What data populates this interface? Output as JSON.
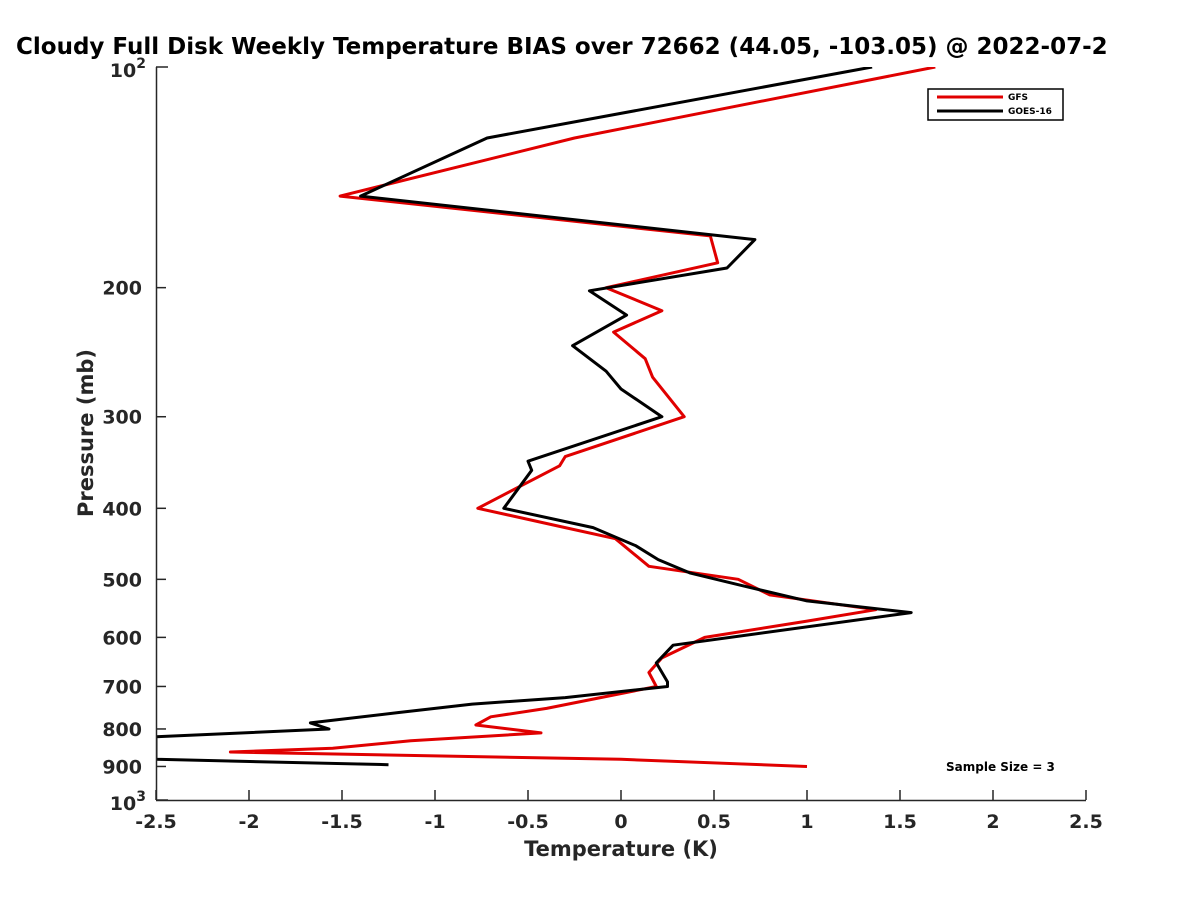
{
  "chart_data": {
    "type": "line",
    "title": "Cloudy Full Disk Weekly Temperature BIAS over 72662 (44.05, -103.05) @ 2022-07-2",
    "xlabel": "Temperature (K)",
    "ylabel": "Pressure (mb)",
    "xlim": [
      -2.5,
      2.5
    ],
    "ylim": [
      100,
      1000
    ],
    "yscale": "log",
    "y_reversed": true,
    "x_ticks": [
      -2.5,
      -2,
      -1.5,
      -1,
      -0.5,
      0,
      0.5,
      1,
      1.5,
      2,
      2.5
    ],
    "x_tick_labels": [
      "-2.5",
      "-2",
      "-1.5",
      "-1",
      "-0.5",
      "0",
      "0.5",
      "1",
      "1.5",
      "2",
      "2.5"
    ],
    "y_ticks": [
      200,
      300,
      400,
      500,
      600,
      700,
      800,
      900
    ],
    "y_tick_labels": [
      "200",
      "300",
      "400",
      "500",
      "600",
      "700",
      "800",
      "900"
    ],
    "y_major_ticks": [
      100,
      1000
    ],
    "y_major_base": "10",
    "y_major_exponents": [
      "2",
      "3"
    ],
    "legend": {
      "position": "top-right"
    },
    "grid": false,
    "annotation": "Sample Size = 3",
    "series": [
      {
        "name": "GFS",
        "color": "#e00000",
        "points": [
          [
            1.69,
            100
          ],
          [
            -0.25,
            125
          ],
          [
            -1.51,
            150
          ],
          [
            0.48,
            170
          ],
          [
            0.52,
            185
          ],
          [
            -0.08,
            200
          ],
          [
            0.22,
            215
          ],
          [
            -0.04,
            230
          ],
          [
            0.13,
            250
          ],
          [
            0.17,
            265
          ],
          [
            0.34,
            300
          ],
          [
            -0.3,
            340
          ],
          [
            -0.33,
            350
          ],
          [
            -0.77,
            400
          ],
          [
            -0.3,
            425
          ],
          [
            -0.03,
            440
          ],
          [
            0.15,
            480
          ],
          [
            0.63,
            500
          ],
          [
            0.8,
            525
          ],
          [
            1.37,
            550
          ],
          [
            1.0,
            570
          ],
          [
            0.45,
            600
          ],
          [
            0.22,
            640
          ],
          [
            0.15,
            670
          ],
          [
            0.19,
            700
          ],
          [
            -0.4,
            750
          ],
          [
            -0.7,
            770
          ],
          [
            -0.78,
            790
          ],
          [
            -0.43,
            810
          ],
          [
            -1.13,
            830
          ],
          [
            -1.55,
            850
          ],
          [
            -2.1,
            860
          ],
          [
            0.0,
            880
          ],
          [
            1.0,
            900
          ]
        ]
      },
      {
        "name": "GOES-16",
        "color": "#000000",
        "points": [
          [
            1.35,
            100
          ],
          [
            -0.72,
            125
          ],
          [
            -1.4,
            150
          ],
          [
            0.72,
            172
          ],
          [
            0.57,
            188
          ],
          [
            -0.17,
            202
          ],
          [
            0.03,
            218
          ],
          [
            -0.26,
            240
          ],
          [
            -0.08,
            260
          ],
          [
            0.0,
            275
          ],
          [
            0.22,
            300
          ],
          [
            -0.5,
            345
          ],
          [
            -0.48,
            355
          ],
          [
            -0.63,
            400
          ],
          [
            -0.15,
            425
          ],
          [
            0.08,
            450
          ],
          [
            0.2,
            470
          ],
          [
            0.37,
            490
          ],
          [
            0.65,
            510
          ],
          [
            1.0,
            535
          ],
          [
            1.56,
            555
          ],
          [
            0.28,
            615
          ],
          [
            0.19,
            650
          ],
          [
            0.25,
            690
          ],
          [
            0.25,
            700
          ],
          [
            -0.3,
            725
          ],
          [
            -0.8,
            740
          ],
          [
            -1.2,
            760
          ],
          [
            -1.67,
            785
          ],
          [
            -1.57,
            800
          ],
          [
            -2.5,
            820
          ],
          [
            -2.5,
            880
          ],
          [
            -1.25,
            895
          ]
        ]
      }
    ]
  }
}
